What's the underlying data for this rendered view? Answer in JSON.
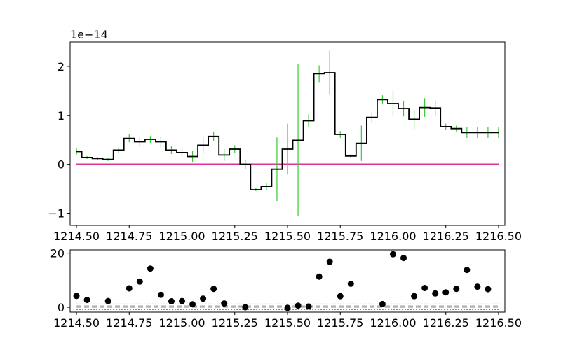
{
  "chart_data": [
    {
      "type": "step",
      "panel": "spectrum",
      "title": "",
      "xlabel": "",
      "ylabel": "",
      "offset_text": "1e−14",
      "xlim": [
        1214.47,
        1216.53
      ],
      "ylim": [
        -1.25,
        2.5
      ],
      "xticks": [
        1214.5,
        1214.75,
        1215.0,
        1215.25,
        1215.5,
        1215.75,
        1216.0,
        1216.25,
        1216.5
      ],
      "xtick_labels": [
        "1214.50",
        "1214.75",
        "1215.00",
        "1215.25",
        "1215.50",
        "1215.75",
        "1216.00",
        "1216.25",
        "1216.50"
      ],
      "yticks": [
        -1,
        0,
        1,
        2
      ],
      "ytick_labels": [
        "−1",
        "0",
        "1",
        "2"
      ],
      "grid": false,
      "x": [
        1214.5,
        1214.55,
        1214.6,
        1214.65,
        1214.7,
        1214.75,
        1214.8,
        1214.85,
        1214.9,
        1214.95,
        1215.0,
        1215.05,
        1215.1,
        1215.15,
        1215.2,
        1215.25,
        1215.3,
        1215.35,
        1215.4,
        1215.45,
        1215.5,
        1215.55,
        1215.6,
        1215.65,
        1215.7,
        1215.75,
        1215.8,
        1215.85,
        1215.9,
        1215.95,
        1216.0,
        1216.05,
        1216.1,
        1216.15,
        1216.2,
        1216.25,
        1216.3,
        1216.35,
        1216.4,
        1216.45,
        1216.5
      ],
      "flux": [
        0.26,
        0.14,
        0.12,
        0.1,
        0.29,
        0.53,
        0.46,
        0.51,
        0.46,
        0.29,
        0.24,
        0.16,
        0.39,
        0.57,
        0.19,
        0.31,
        0.0,
        -0.52,
        -0.45,
        -0.1,
        0.31,
        0.49,
        0.89,
        1.85,
        1.87,
        0.61,
        0.17,
        0.43,
        0.96,
        1.32,
        1.24,
        1.14,
        0.92,
        1.16,
        1.15,
        0.77,
        0.73,
        0.65,
        0.65,
        0.65,
        0.65
      ],
      "error": [
        0.07,
        0.03,
        0.03,
        0.03,
        0.05,
        0.08,
        0.08,
        0.07,
        0.1,
        0.08,
        0.07,
        0.12,
        0.17,
        0.1,
        0.12,
        0.08,
        0.09,
        0.03,
        0.07,
        0.65,
        0.52,
        1.55,
        0.13,
        0.17,
        0.45,
        0.07,
        0.04,
        0.36,
        0.11,
        0.09,
        0.26,
        0.16,
        0.2,
        0.19,
        0.15,
        0.06,
        0.06,
        0.11,
        0.11,
        0.11,
        0.11
      ],
      "model": [
        0,
        0,
        0,
        0,
        0,
        0,
        0,
        0,
        0,
        0,
        0,
        0,
        0,
        0,
        0,
        0,
        0,
        0,
        0,
        0,
        0,
        0,
        0,
        0,
        0,
        0,
        0,
        0,
        0,
        0,
        0,
        0,
        0,
        0,
        0,
        0,
        0,
        0,
        0,
        0,
        0
      ],
      "colors": {
        "flux": "#000000",
        "error": "#33cc33",
        "model": "#dd3399"
      }
    },
    {
      "type": "scatter",
      "panel": "residual",
      "title": "",
      "xlabel": "",
      "ylabel": "",
      "xlim": [
        1214.47,
        1216.53
      ],
      "ylim": [
        -1.8,
        21.2
      ],
      "xticks": [
        1214.5,
        1214.75,
        1215.0,
        1215.25,
        1215.5,
        1215.75,
        1216.0,
        1216.25,
        1216.5
      ],
      "xtick_labels": [
        "1214.50",
        "1214.75",
        "1215.00",
        "1215.25",
        "1215.50",
        "1215.75",
        "1216.00",
        "1216.25",
        "1216.50"
      ],
      "yticks": [
        0,
        20
      ],
      "ytick_labels": [
        "0",
        "20"
      ],
      "grid": false,
      "x": [
        1214.5,
        1214.55,
        1214.65,
        1214.75,
        1214.8,
        1214.85,
        1214.9,
        1214.95,
        1215.0,
        1215.05,
        1215.1,
        1215.15,
        1215.2,
        1215.3,
        1215.5,
        1215.55,
        1215.6,
        1215.65,
        1215.7,
        1215.75,
        1215.8,
        1215.95,
        1216.0,
        1216.05,
        1216.1,
        1216.15,
        1216.2,
        1216.25,
        1216.3,
        1216.35,
        1216.4,
        1216.45
      ],
      "y": [
        4.2,
        2.7,
        2.3,
        7.0,
        9.5,
        14.3,
        4.6,
        2.2,
        2.3,
        1.1,
        3.2,
        6.8,
        1.4,
        0.0,
        -0.2,
        0.6,
        0.3,
        11.3,
        16.8,
        4.1,
        8.7,
        1.2,
        19.6,
        18.2,
        4.1,
        7.1,
        5.1,
        5.5,
        6.8,
        13.8,
        7.6,
        6.7
      ],
      "reference_lines": [
        {
          "style": "dotted",
          "y": 1.2
        },
        {
          "style": "dotted",
          "y": -0.9
        },
        {
          "style": "dashed",
          "y": 0.5
        },
        {
          "style": "dashed",
          "y": 0.0
        }
      ],
      "colors": {
        "points": "#000000",
        "reference_lines": "#888888"
      }
    }
  ]
}
